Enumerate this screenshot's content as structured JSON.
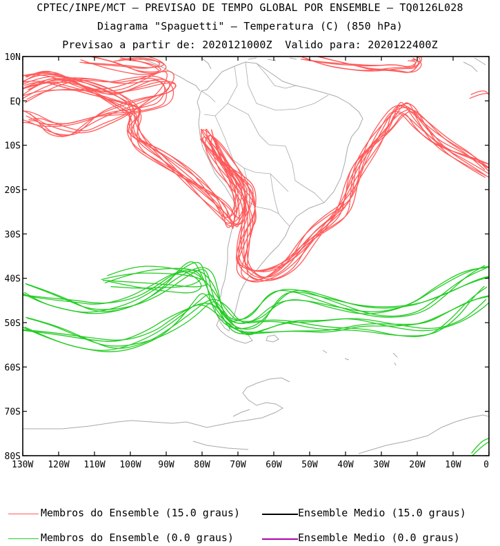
{
  "header": {
    "line1": "CPTEC/INPE/MCT — PREVISAO DE TEMPO GLOBAL POR ENSEMBLE — TQ0126L028",
    "line2": "Diagrama \"Spaguetti\" — Temperatura (C) (850 hPa)",
    "line3": "Previsao a partir de: 2020121000Z  Valido para: 2020122400Z"
  },
  "map": {
    "lon_range": [
      -130,
      0
    ],
    "lat_range": [
      -80,
      10
    ],
    "lat_labels": [
      "10N",
      "EQ",
      "10S",
      "20S",
      "30S",
      "40S",
      "50S",
      "60S",
      "70S",
      "80S"
    ],
    "lat_values": [
      10,
      0,
      -10,
      -20,
      -30,
      -40,
      -50,
      -60,
      -70,
      -80
    ],
    "lon_labels": [
      "130W",
      "120W",
      "110W",
      "100W",
      "90W",
      "80W",
      "70W",
      "60W",
      "50W",
      "40W",
      "30W",
      "20W",
      "10W",
      "0"
    ],
    "lon_values": [
      -130,
      -120,
      -110,
      -100,
      -90,
      -80,
      -70,
      -60,
      -50,
      -40,
      -30,
      -20,
      -10,
      0
    ],
    "coast_color": "#a8a8a8"
  },
  "legend": {
    "items": [
      {
        "label": "Membros do Ensemble (15.0 graus)",
        "color": "#ff5a5a"
      },
      {
        "label": "Ensemble Medio (15.0 graus)",
        "color": "#000000"
      },
      {
        "label": "Membros do Ensemble (0.0 graus)",
        "color": "#22cc22"
      },
      {
        "label": "Ensemble Medio (0.0 graus)",
        "color": "#aa00aa"
      }
    ]
  }
}
